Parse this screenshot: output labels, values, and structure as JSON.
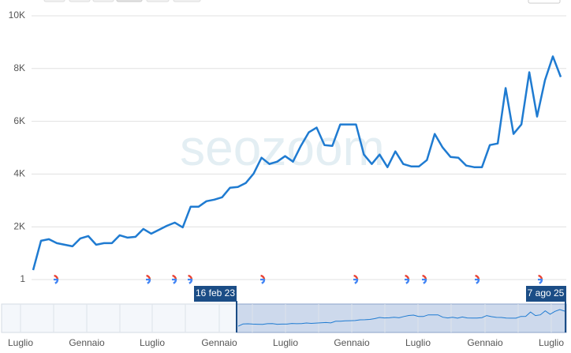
{
  "chart_data": {
    "type": "line",
    "watermark": "seozoom",
    "series": [
      {
        "color": "#1f7bd1",
        "values": [
          360,
          1470,
          1530,
          1380,
          1320,
          1260,
          1560,
          1650,
          1320,
          1380,
          1380,
          1680,
          1590,
          1620,
          1920,
          1740,
          1890,
          2040,
          2160,
          1980,
          2760,
          2760,
          2970,
          3030,
          3120,
          3480,
          3510,
          3660,
          4020,
          4620,
          4380,
          4470,
          4680,
          4470,
          5070,
          5580,
          5760,
          5100,
          5070,
          5880,
          5880,
          5880,
          4740,
          4380,
          4740,
          4260,
          4860,
          4380,
          4290,
          4290,
          4530,
          5520,
          5010,
          4650,
          4620,
          4320,
          4260,
          4260,
          5100,
          5160,
          7260,
          5520,
          5880,
          7860,
          6180,
          7560,
          8460,
          7680
        ]
      }
    ],
    "ylim": [
      1,
      10000
    ],
    "yticks": [
      1,
      {
        "value": 2000,
        "label": "2K"
      },
      {
        "value": 4000,
        "label": "4K"
      },
      {
        "value": 6000,
        "label": "6K"
      },
      {
        "value": 8000,
        "label": "8K"
      },
      {
        "value": 10000,
        "label": "10K"
      }
    ],
    "grid": true,
    "navigator": {
      "categories": [
        "Luglio",
        "Gennaio",
        "Luglio",
        "Gennaio",
        "Luglio",
        "Gennaio",
        "Luglio",
        "Gennaio",
        "Luglio"
      ],
      "range_start": "16 feb 23",
      "range_end": "7 ago 25"
    }
  }
}
